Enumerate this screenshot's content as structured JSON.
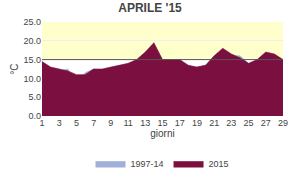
{
  "chart_data": {
    "type": "area",
    "title": "APRILE '15",
    "x_label": "giorni",
    "y_label": "°C",
    "x": [
      1,
      2,
      3,
      4,
      5,
      6,
      7,
      8,
      9,
      10,
      11,
      12,
      13,
      14,
      15,
      16,
      17,
      18,
      19,
      20,
      21,
      22,
      23,
      24,
      25,
      26,
      27,
      28,
      29
    ],
    "series": [
      {
        "name": "1997-14",
        "color": "#a0b0d8",
        "values": [
          14.0,
          12.5,
          12.0,
          12.5,
          9.0,
          11.5,
          12.5,
          12.0,
          12.5,
          13.0,
          13.5,
          14.0,
          14.5,
          15.0,
          14.5,
          14.5,
          14.5,
          13.0,
          13.0,
          13.5,
          15.0,
          17.5,
          16.0,
          16.0,
          14.0,
          13.5,
          13.5,
          12.5,
          15.0
        ]
      },
      {
        "name": "2015",
        "color": "#7b1040",
        "values": [
          14.5,
          13.0,
          12.5,
          12.0,
          11.0,
          11.0,
          12.5,
          12.5,
          13.0,
          13.5,
          14.0,
          15.0,
          17.0,
          19.5,
          15.0,
          15.0,
          15.0,
          13.5,
          13.0,
          13.5,
          16.0,
          18.0,
          16.5,
          15.5,
          14.0,
          15.0,
          17.0,
          16.5,
          15.0
        ]
      }
    ],
    "band": {
      "from": 15.0,
      "to": 25.0,
      "color": "#ffffcc"
    },
    "hline": {
      "y": 15.0,
      "color": "#555555"
    },
    "xlim": [
      1,
      29
    ],
    "xticks": [
      1,
      3,
      5,
      7,
      9,
      11,
      13,
      15,
      17,
      19,
      21,
      23,
      25,
      27,
      29
    ],
    "ylim": [
      0.0,
      25.0
    ],
    "yticks": [
      {
        "value": 0.0,
        "label": "0.0"
      },
      {
        "value": 5.0,
        "label": "5.0"
      },
      {
        "value": 10.0,
        "label": "10.0"
      },
      {
        "value": 15.0,
        "label": "15.0"
      },
      {
        "value": 20.0,
        "label": "20.0"
      },
      {
        "value": 25.0,
        "label": "25.0"
      }
    ],
    "grid": true,
    "legend": "bottom"
  }
}
